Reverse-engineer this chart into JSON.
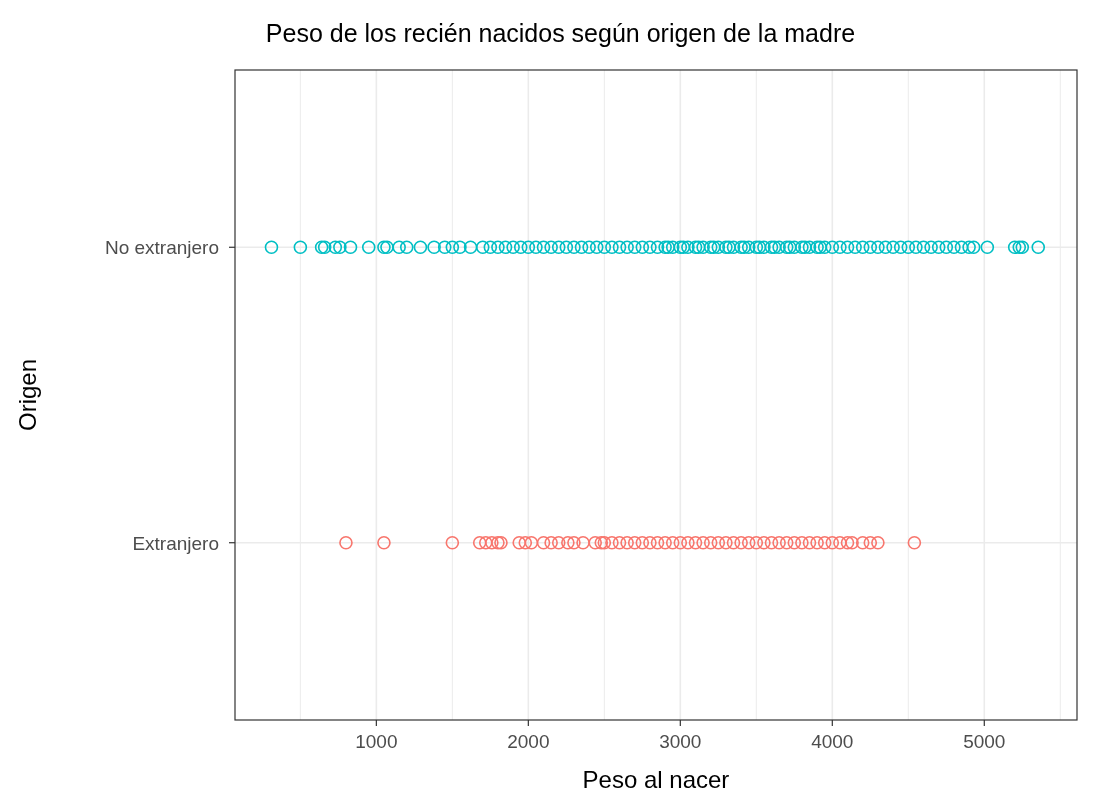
{
  "chart_data": {
    "type": "scatter",
    "orientation": "horizontal",
    "title": "Peso de los recién nacidos según origen de la madre",
    "xlabel": "Peso al nacer",
    "ylabel": "Origen",
    "categories": [
      "No extranjero",
      "Extranjero"
    ],
    "xlim": [
      70,
      5610
    ],
    "xticks": [
      {
        "value": 500,
        "label": null
      },
      1000,
      {
        "value": 1500,
        "label": null
      },
      2000,
      {
        "value": 2500,
        "label": null
      },
      3000,
      {
        "value": 3500,
        "label": null
      },
      4000,
      {
        "value": 4500,
        "label": null
      },
      5000,
      {
        "value": 5500,
        "label": null
      }
    ],
    "grid": true,
    "marker": "circle",
    "series": [
      {
        "color": "#00bfc4",
        "x": [
          "No extranjero",
          "No extranjero",
          "No extranjero",
          "No extranjero",
          "No extranjero",
          "No extranjero",
          "No extranjero",
          "No extranjero",
          "No extranjero",
          "No extranjero",
          "No extranjero",
          "No extranjero",
          "No extranjero",
          "No extranjero",
          "No extranjero",
          "No extranjero",
          "No extranjero",
          "No extranjero",
          "No extranjero",
          "No extranjero",
          "No extranjero",
          "No extranjero",
          "No extranjero",
          "No extranjero",
          "No extranjero",
          "No extranjero",
          "No extranjero",
          "No extranjero",
          "No extranjero",
          "No extranjero",
          "No extranjero",
          "No extranjero",
          "No extranjero",
          "No extranjero",
          "No extranjero",
          "No extranjero",
          "No extranjero",
          "No extranjero",
          "No extranjero",
          "No extranjero",
          "No extranjero",
          "No extranjero",
          "No extranjero",
          "No extranjero",
          "No extranjero",
          "No extranjero",
          "No extranjero",
          "No extranjero",
          "No extranjero",
          "No extranjero",
          "No extranjero",
          "No extranjero",
          "No extranjero",
          "No extranjero",
          "No extranjero",
          "No extranjero",
          "No extranjero",
          "No extranjero",
          "No extranjero",
          "No extranjero",
          "No extranjero",
          "No extranjero",
          "No extranjero",
          "No extranjero",
          "No extranjero",
          "No extranjero",
          "No extranjero",
          "No extranjero",
          "No extranjero",
          "No extranjero",
          "No extranjero",
          "No extranjero",
          "No extranjero",
          "No extranjero",
          "No extranjero",
          "No extranjero",
          "No extranjero",
          "No extranjero",
          "No extranjero",
          "No extranjero",
          "No extranjero",
          "No extranjero",
          "No extranjero",
          "No extranjero",
          "No extranjero",
          "No extranjero",
          "No extranjero",
          "No extranjero",
          "No extranjero",
          "No extranjero",
          "No extranjero",
          "No extranjero",
          "No extranjero",
          "No extranjero",
          "No extranjero",
          "No extranjero",
          "No extranjero",
          "No extranjero",
          "No extranjero",
          "No extranjero"
        ],
        "values": [
          310,
          500,
          640,
          660,
          730,
          760,
          830,
          950,
          1050,
          1070,
          1150,
          1200,
          1290,
          1380,
          1450,
          1500,
          1550,
          1620,
          1700,
          1750,
          1800,
          1850,
          1900,
          1950,
          2000,
          2050,
          2100,
          2150,
          2200,
          2250,
          2300,
          2350,
          2400,
          2450,
          2500,
          2550,
          2600,
          2650,
          2700,
          2750,
          2800,
          2850,
          2900,
          2950,
          3000,
          3050,
          3100,
          3150,
          3200,
          3250,
          3300,
          3350,
          3400,
          3450,
          3500,
          3550,
          3600,
          3650,
          3700,
          3750,
          3800,
          3850,
          3900,
          3950,
          4000,
          4050,
          4100,
          4150,
          4200,
          4250,
          4300,
          4350,
          4400,
          4450,
          4500,
          4550,
          4600,
          4650,
          4700,
          4750,
          4800,
          4850,
          4900,
          4930,
          5020,
          5200,
          5230,
          5250,
          5355,
          3020,
          3120,
          3220,
          3320,
          3420,
          3520,
          3620,
          3720,
          3820,
          3920,
          2920
        ]
      },
      {
        "color": "#f8766d",
        "x": [
          "Extranjero",
          "Extranjero",
          "Extranjero",
          "Extranjero",
          "Extranjero",
          "Extranjero",
          "Extranjero",
          "Extranjero",
          "Extranjero",
          "Extranjero",
          "Extranjero",
          "Extranjero",
          "Extranjero",
          "Extranjero",
          "Extranjero",
          "Extranjero",
          "Extranjero",
          "Extranjero",
          "Extranjero",
          "Extranjero",
          "Extranjero",
          "Extranjero",
          "Extranjero",
          "Extranjero",
          "Extranjero",
          "Extranjero",
          "Extranjero",
          "Extranjero",
          "Extranjero",
          "Extranjero",
          "Extranjero",
          "Extranjero",
          "Extranjero",
          "Extranjero",
          "Extranjero",
          "Extranjero",
          "Extranjero",
          "Extranjero",
          "Extranjero",
          "Extranjero",
          "Extranjero",
          "Extranjero",
          "Extranjero",
          "Extranjero",
          "Extranjero",
          "Extranjero",
          "Extranjero",
          "Extranjero",
          "Extranjero",
          "Extranjero",
          "Extranjero",
          "Extranjero",
          "Extranjero",
          "Extranjero",
          "Extranjero",
          "Extranjero",
          "Extranjero"
        ],
        "values": [
          800,
          1050,
          1500,
          1680,
          1720,
          1760,
          1800,
          1820,
          1940,
          1980,
          2020,
          2100,
          2150,
          2200,
          2260,
          2300,
          2360,
          2440,
          2500,
          2550,
          2600,
          2650,
          2700,
          2750,
          2800,
          2850,
          2900,
          2950,
          3000,
          3050,
          3100,
          3150,
          3200,
          3250,
          3300,
          3350,
          3400,
          3450,
          3500,
          3550,
          3600,
          3650,
          3700,
          3750,
          3800,
          3850,
          3900,
          3950,
          4000,
          4050,
          4100,
          4130,
          4200,
          4250,
          4300,
          4540,
          2480
        ]
      }
    ]
  }
}
